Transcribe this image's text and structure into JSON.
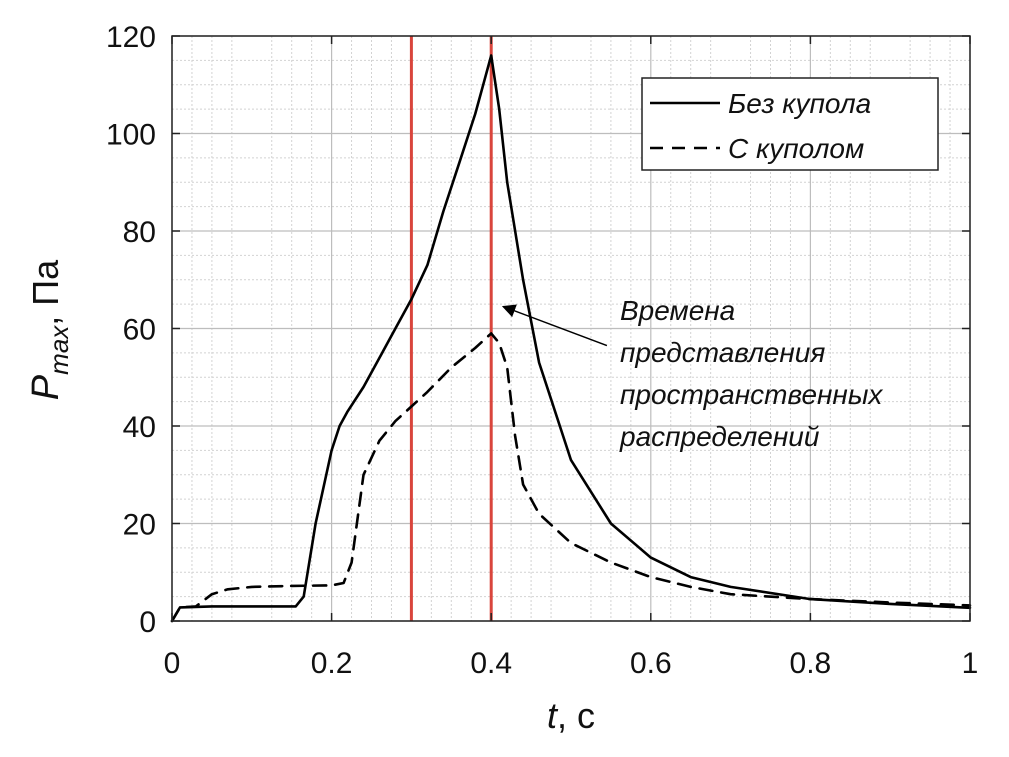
{
  "chart_data": {
    "type": "line",
    "title": "",
    "xlabel": "t, c",
    "xlabel_var": "t",
    "xlabel_unit": ", c",
    "ylabel_var": "P",
    "ylabel_sub": "max",
    "ylabel_unit": ", Па",
    "xlim": [
      0,
      1
    ],
    "ylim": [
      0,
      120
    ],
    "xticks": [
      0,
      0.2,
      0.4,
      0.6,
      0.8,
      1
    ],
    "xtick_labels": [
      "0",
      "0.2",
      "0.4",
      "0.6",
      "0.8",
      "1"
    ],
    "yticks": [
      0,
      20,
      40,
      60,
      80,
      100,
      120
    ],
    "ytick_labels": [
      "0",
      "20",
      "40",
      "60",
      "80",
      "100",
      "120"
    ],
    "grid": "major and minor",
    "legend_position": "top-right",
    "series": [
      {
        "name": "Без купола",
        "style": "solid",
        "color": "#000000",
        "x": [
          0,
          0.01,
          0.05,
          0.1,
          0.155,
          0.165,
          0.18,
          0.2,
          0.21,
          0.22,
          0.24,
          0.26,
          0.28,
          0.3,
          0.32,
          0.34,
          0.36,
          0.38,
          0.39,
          0.4,
          0.41,
          0.42,
          0.44,
          0.46,
          0.5,
          0.55,
          0.6,
          0.65,
          0.7,
          0.8,
          0.9,
          1.0
        ],
        "y": [
          0,
          2.8,
          3,
          3,
          3,
          5,
          20,
          35,
          40,
          43,
          48,
          54,
          60,
          66,
          73,
          84,
          94,
          104,
          110,
          116,
          105,
          90,
          70,
          53,
          33,
          20,
          13,
          9,
          7,
          4.5,
          3.5,
          2.7
        ]
      },
      {
        "name": "С куполом",
        "style": "dashed",
        "color": "#000000",
        "x": [
          0,
          0.01,
          0.03,
          0.05,
          0.07,
          0.1,
          0.15,
          0.2,
          0.215,
          0.225,
          0.24,
          0.26,
          0.28,
          0.3,
          0.32,
          0.35,
          0.38,
          0.4,
          0.41,
          0.42,
          0.43,
          0.44,
          0.46,
          0.5,
          0.55,
          0.6,
          0.65,
          0.7,
          0.8,
          0.9,
          1.0
        ],
        "y": [
          0,
          2.8,
          3,
          5.5,
          6.5,
          7,
          7.2,
          7.3,
          7.8,
          12,
          30,
          37,
          41,
          44,
          47,
          52,
          56,
          59,
          57,
          52,
          38,
          28,
          22,
          16,
          12,
          9,
          7,
          5.5,
          4.5,
          3.8,
          3.2
        ]
      }
    ],
    "vertical_lines": [
      {
        "x": 0.3,
        "color": "#d9453c"
      },
      {
        "x": 0.4,
        "color": "#d9453c"
      }
    ],
    "annotation": {
      "lines": [
        "Времена",
        "представления",
        "пространственных",
        "распределений"
      ],
      "arrow_from": [
        0.545,
        56.5
      ],
      "arrow_to": [
        0.415,
        64.5
      ]
    }
  }
}
